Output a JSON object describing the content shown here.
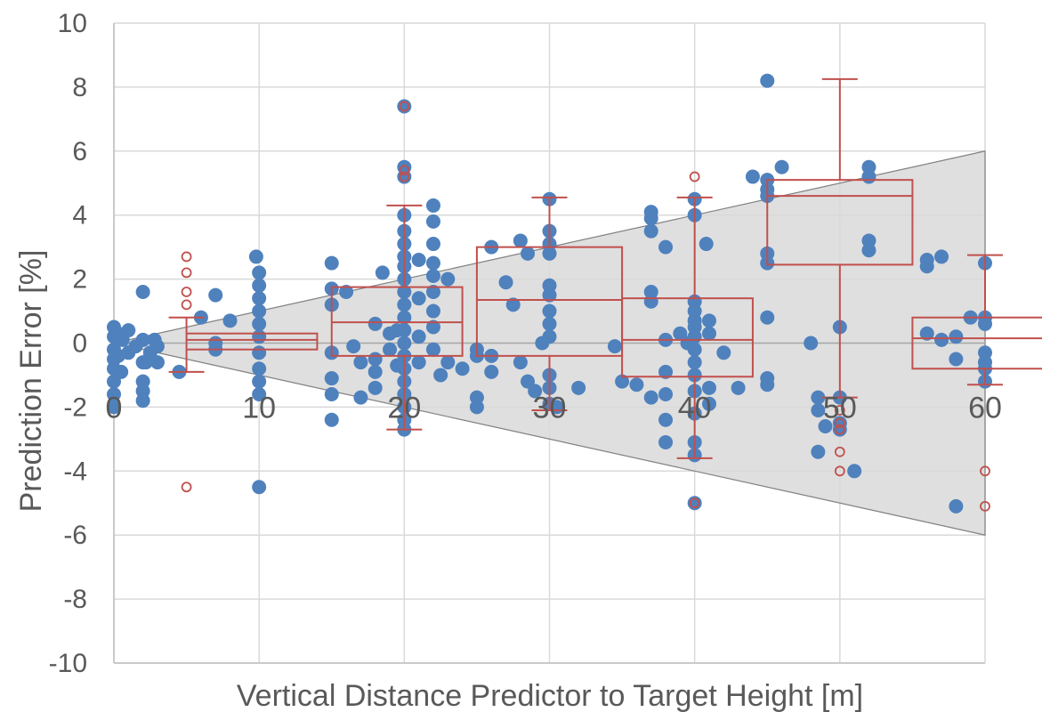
{
  "colors": {
    "points": "#4f81bd",
    "box": "#c0504d",
    "band_fill": "#d9d9d9",
    "band_stroke": "#808080",
    "grid": "#d9d9d9",
    "text": "#595959"
  },
  "chart_data": {
    "type": "scatter",
    "title": "",
    "xlabel": "Vertical Distance Predictor to Target Height [m]",
    "ylabel": "Prediction Error [%]",
    "xlim": [
      0,
      60
    ],
    "ylim": [
      -10,
      10
    ],
    "x_ticks": [
      0,
      10,
      20,
      30,
      40,
      50,
      60
    ],
    "y_ticks": [
      -10,
      -8,
      -6,
      -4,
      -2,
      0,
      2,
      4,
      6,
      8,
      10
    ],
    "grid": true,
    "legend": "none",
    "band": {
      "x": [
        0,
        60
      ],
      "upper": [
        0,
        6
      ],
      "lower": [
        0,
        -6
      ]
    },
    "boxes": [
      {
        "x": 5,
        "x_range": [
          5,
          14
        ],
        "q1": -0.2,
        "median": 0.1,
        "q3": 0.3,
        "whisker_low": -0.9,
        "whisker_high": 0.8,
        "outliers": [
          2.7,
          2.2,
          1.6,
          1.2,
          -4.5
        ]
      },
      {
        "x": 20,
        "x_range": [
          15,
          24
        ],
        "q1": -0.4,
        "median": 0.65,
        "q3": 1.75,
        "whisker_low": -2.7,
        "whisker_high": 4.3,
        "outliers": [
          7.4,
          5.4,
          5.2
        ]
      },
      {
        "x": 30,
        "x_range": [
          25,
          35
        ],
        "q1": -0.4,
        "median": 1.35,
        "q3": 3.0,
        "whisker_low": -2.1,
        "whisker_high": 4.55,
        "outliers": []
      },
      {
        "x": 40,
        "x_range": [
          35,
          44
        ],
        "q1": -1.05,
        "median": 0.1,
        "q3": 1.4,
        "whisker_low": -3.6,
        "whisker_high": 4.55,
        "outliers": [
          5.2,
          -5.0
        ]
      },
      {
        "x": 50,
        "x_range": [
          45,
          55
        ],
        "q1": 2.45,
        "median": 4.6,
        "q3": 5.1,
        "whisker_low": -1.7,
        "whisker_high": 8.25,
        "outliers": [
          -2.1,
          -2.5,
          -2.7,
          -3.4,
          -4.0
        ]
      },
      {
        "x": 60,
        "x_range": [
          55,
          65
        ],
        "q1": -0.8,
        "median": 0.15,
        "q3": 0.8,
        "whisker_low": -1.3,
        "whisker_high": 2.75,
        "outliers": [
          -4.0,
          -5.1
        ]
      }
    ],
    "series": [
      {
        "points": [
          [
            0,
            -2
          ],
          [
            0,
            -1.6
          ],
          [
            0,
            -1.2
          ],
          [
            0,
            -0.8
          ],
          [
            0,
            -0.5
          ],
          [
            0,
            -0.2
          ],
          [
            0,
            0.2
          ],
          [
            0,
            0.5
          ],
          [
            0.3,
            0.3
          ],
          [
            0.3,
            -0.4
          ],
          [
            0.5,
            -0.9
          ],
          [
            0.6,
            0.1
          ],
          [
            1,
            -0.3
          ],
          [
            1,
            0.4
          ],
          [
            1.5,
            -0.1
          ],
          [
            2,
            -0.6
          ],
          [
            2,
            0.1
          ],
          [
            2.2,
            -0.6
          ],
          [
            2.5,
            -0.3
          ],
          [
            2,
            -1.8
          ],
          [
            2,
            -1.5
          ],
          [
            2,
            -1.2
          ],
          [
            2,
            1.6
          ],
          [
            2.8,
            0.1
          ],
          [
            3,
            -0.6
          ],
          [
            3,
            -0.1
          ],
          [
            4.5,
            -0.9
          ],
          [
            6,
            0.8
          ],
          [
            7,
            1.5
          ],
          [
            7,
            0
          ],
          [
            7,
            -0.2
          ],
          [
            8,
            0.7
          ],
          [
            9.8,
            2.7
          ],
          [
            10,
            2.2
          ],
          [
            10,
            1.8
          ],
          [
            10,
            1.4
          ],
          [
            10,
            1.0
          ],
          [
            10,
            0.6
          ],
          [
            10,
            0.2
          ],
          [
            10,
            -0.3
          ],
          [
            10,
            -0.8
          ],
          [
            10,
            -1.2
          ],
          [
            10,
            -1.6
          ],
          [
            10,
            -4.5
          ],
          [
            15,
            2.5
          ],
          [
            15,
            1.7
          ],
          [
            15,
            1.2
          ],
          [
            15,
            -0.3
          ],
          [
            15,
            -1.1
          ],
          [
            15,
            -1.6
          ],
          [
            15,
            -2.4
          ],
          [
            16,
            1.6
          ],
          [
            16.5,
            -0.1
          ],
          [
            17,
            -0.6
          ],
          [
            17,
            -1.7
          ],
          [
            18,
            -0.5
          ],
          [
            18,
            -0.9
          ],
          [
            18,
            -1.4
          ],
          [
            18,
            0.6
          ],
          [
            18.5,
            2.2
          ],
          [
            19,
            0.3
          ],
          [
            19,
            -0.2
          ],
          [
            19.5,
            -0.7
          ],
          [
            19.5,
            0.4
          ],
          [
            20,
            7.4
          ],
          [
            20,
            5.5
          ],
          [
            20,
            5.2
          ],
          [
            20,
            4.0
          ],
          [
            20,
            3.5
          ],
          [
            20,
            3.1
          ],
          [
            20,
            2.7
          ],
          [
            20,
            2.4
          ],
          [
            20,
            2.0
          ],
          [
            20,
            1.6
          ],
          [
            20,
            1.2
          ],
          [
            20,
            0.8
          ],
          [
            20,
            0.4
          ],
          [
            20,
            0
          ],
          [
            20,
            -0.4
          ],
          [
            20,
            -0.8
          ],
          [
            20,
            -1.2
          ],
          [
            20,
            -1.6
          ],
          [
            20,
            -2.0
          ],
          [
            20,
            -2.4
          ],
          [
            20,
            -2.7
          ],
          [
            21,
            2.6
          ],
          [
            21,
            1.4
          ],
          [
            21,
            0.2
          ],
          [
            21,
            -0.6
          ],
          [
            22,
            4.3
          ],
          [
            22,
            3.8
          ],
          [
            22,
            3.1
          ],
          [
            22,
            2.5
          ],
          [
            22,
            2.1
          ],
          [
            22,
            1.6
          ],
          [
            22,
            1.0
          ],
          [
            22,
            0.5
          ],
          [
            22,
            -0.2
          ],
          [
            22.5,
            -1.0
          ],
          [
            23,
            2.0
          ],
          [
            23,
            -0.6
          ],
          [
            24,
            -0.8
          ],
          [
            25,
            -0.2
          ],
          [
            25,
            -0.4
          ],
          [
            25,
            -1.7
          ],
          [
            25,
            -2.0
          ],
          [
            26,
            -0.4
          ],
          [
            26,
            -0.9
          ],
          [
            26,
            3.0
          ],
          [
            27,
            1.9
          ],
          [
            27.5,
            1.2
          ],
          [
            28,
            3.2
          ],
          [
            28,
            -0.6
          ],
          [
            28.5,
            2.8
          ],
          [
            28.5,
            -1.2
          ],
          [
            29,
            -1.5
          ],
          [
            29.5,
            0
          ],
          [
            30,
            4.5
          ],
          [
            30,
            3.5
          ],
          [
            30,
            3.1
          ],
          [
            30,
            2.8
          ],
          [
            30,
            1.8
          ],
          [
            30,
            1.5
          ],
          [
            30,
            1.0
          ],
          [
            30,
            0.6
          ],
          [
            30,
            0.2
          ],
          [
            30,
            -1.0
          ],
          [
            30,
            -1.4
          ],
          [
            30,
            -1.9
          ],
          [
            30.5,
            -2.0
          ],
          [
            32,
            -1.4
          ],
          [
            34.5,
            -0.1
          ],
          [
            35,
            -1.2
          ],
          [
            36,
            -1.3
          ],
          [
            37,
            4.1
          ],
          [
            37,
            3.9
          ],
          [
            37,
            3.5
          ],
          [
            37,
            1.6
          ],
          [
            37,
            1.3
          ],
          [
            37,
            -1.7
          ],
          [
            38,
            3.0
          ],
          [
            38,
            0.1
          ],
          [
            38,
            -0.9
          ],
          [
            38,
            -1.6
          ],
          [
            38,
            -2.4
          ],
          [
            38,
            -3.1
          ],
          [
            39,
            0.3
          ],
          [
            39.5,
            0
          ],
          [
            40,
            4.5
          ],
          [
            40,
            4.0
          ],
          [
            40,
            1.3
          ],
          [
            40,
            1.0
          ],
          [
            40,
            0.7
          ],
          [
            40,
            0.5
          ],
          [
            40,
            0.2
          ],
          [
            40,
            -0.2
          ],
          [
            40,
            -0.6
          ],
          [
            40,
            -1.0
          ],
          [
            40,
            -1.5
          ],
          [
            40,
            -2.2
          ],
          [
            40,
            -3.1
          ],
          [
            40,
            -3.5
          ],
          [
            40,
            -5.0
          ],
          [
            40.8,
            3.1
          ],
          [
            41,
            0.7
          ],
          [
            41,
            0.3
          ],
          [
            41,
            -1.4
          ],
          [
            41,
            -1.9
          ],
          [
            42,
            -0.3
          ],
          [
            43,
            -1.4
          ],
          [
            44,
            5.2
          ],
          [
            45,
            8.2
          ],
          [
            45,
            5.1
          ],
          [
            45,
            4.8
          ],
          [
            45,
            4.6
          ],
          [
            45,
            2.8
          ],
          [
            45,
            2.5
          ],
          [
            45,
            0.8
          ],
          [
            45,
            -1.1
          ],
          [
            45,
            -1.3
          ],
          [
            46,
            5.5
          ],
          [
            48,
            0
          ],
          [
            48.5,
            -1.7
          ],
          [
            48.5,
            -2.1
          ],
          [
            48.5,
            -3.4
          ],
          [
            49,
            -2.6
          ],
          [
            50,
            0.5
          ],
          [
            50,
            -1.7
          ],
          [
            50,
            -2.5
          ],
          [
            50,
            -2.7
          ],
          [
            51,
            -4.0
          ],
          [
            52,
            5.5
          ],
          [
            52,
            5.2
          ],
          [
            52,
            3.2
          ],
          [
            52,
            2.9
          ],
          [
            56,
            2.4
          ],
          [
            56,
            2.6
          ],
          [
            56,
            0.3
          ],
          [
            57,
            0.1
          ],
          [
            57,
            2.7
          ],
          [
            58,
            -0.5
          ],
          [
            58,
            0.2
          ],
          [
            58,
            -5.1
          ],
          [
            59,
            0.8
          ],
          [
            60,
            2.5
          ],
          [
            60,
            0.8
          ],
          [
            60,
            0.6
          ],
          [
            60,
            -0.3
          ],
          [
            60,
            -0.6
          ],
          [
            60,
            -0.8
          ],
          [
            60,
            -1.2
          ]
        ]
      }
    ]
  }
}
